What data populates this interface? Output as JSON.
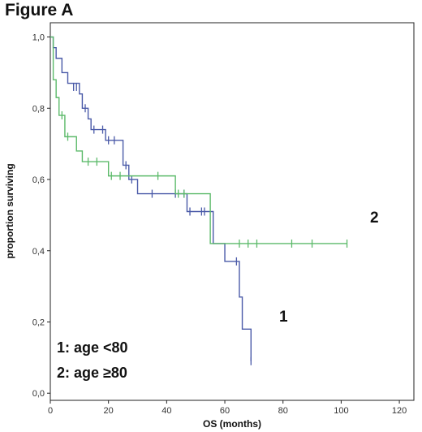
{
  "figure_title": "Figure A",
  "chart_data": {
    "type": "line",
    "xlabel": "OS (months)",
    "ylabel": "proportion surviving",
    "xlim": [
      0,
      125
    ],
    "ylim": [
      -0.02,
      1.04
    ],
    "x_ticks": [
      0,
      20,
      40,
      60,
      80,
      100,
      120
    ],
    "x_tick_labels": [
      "0",
      "20",
      "40",
      "60",
      "80",
      "100",
      "120"
    ],
    "y_ticks": [
      0.0,
      0.2,
      0.4,
      0.6,
      0.8,
      1.0
    ],
    "y_tick_labels": [
      "0,0",
      "0,2",
      "0,4",
      "0,6",
      "0,8",
      "1,0"
    ],
    "series": [
      {
        "curve_label": "1",
        "color": "#4a5aa8",
        "steps": [
          [
            0,
            1.0
          ],
          [
            1,
            0.97
          ],
          [
            2,
            0.94
          ],
          [
            4,
            0.9
          ],
          [
            6,
            0.87
          ],
          [
            10,
            0.84
          ],
          [
            11,
            0.8
          ],
          [
            13,
            0.77
          ],
          [
            14,
            0.74
          ],
          [
            19,
            0.71
          ],
          [
            25,
            0.64
          ],
          [
            27,
            0.6
          ],
          [
            30,
            0.56
          ],
          [
            47,
            0.51
          ],
          [
            56,
            0.42
          ],
          [
            60,
            0.37
          ],
          [
            65,
            0.27
          ],
          [
            66,
            0.18
          ],
          [
            69,
            0.09
          ]
        ],
        "censored": [
          [
            8,
            0.86
          ],
          [
            9,
            0.86
          ],
          [
            12,
            0.8
          ],
          [
            15,
            0.74
          ],
          [
            18,
            0.74
          ],
          [
            20,
            0.71
          ],
          [
            22,
            0.71
          ],
          [
            26,
            0.64
          ],
          [
            28,
            0.6
          ],
          [
            35,
            0.56
          ],
          [
            43,
            0.56
          ],
          [
            46,
            0.56
          ],
          [
            48,
            0.51
          ],
          [
            52,
            0.51
          ],
          [
            53,
            0.51
          ],
          [
            64,
            0.37
          ],
          [
            69,
            0.09
          ]
        ]
      },
      {
        "curve_label": "2",
        "color": "#5cba6a",
        "steps": [
          [
            0,
            1.0
          ],
          [
            1,
            0.88
          ],
          [
            2,
            0.83
          ],
          [
            3,
            0.78
          ],
          [
            5,
            0.72
          ],
          [
            9,
            0.68
          ],
          [
            11,
            0.65
          ],
          [
            20,
            0.61
          ],
          [
            43,
            0.56
          ],
          [
            55,
            0.42
          ],
          [
            102,
            0.42
          ]
        ],
        "censored": [
          [
            4,
            0.78
          ],
          [
            6,
            0.72
          ],
          [
            13,
            0.65
          ],
          [
            16,
            0.65
          ],
          [
            21,
            0.61
          ],
          [
            24,
            0.61
          ],
          [
            37,
            0.61
          ],
          [
            44,
            0.56
          ],
          [
            46,
            0.56
          ],
          [
            65,
            0.42
          ],
          [
            68,
            0.42
          ],
          [
            71,
            0.42
          ],
          [
            83,
            0.42
          ],
          [
            90,
            0.42
          ],
          [
            102,
            0.42
          ]
        ]
      }
    ],
    "legend": [
      "1: age <80",
      "2: age ≥80"
    ]
  }
}
